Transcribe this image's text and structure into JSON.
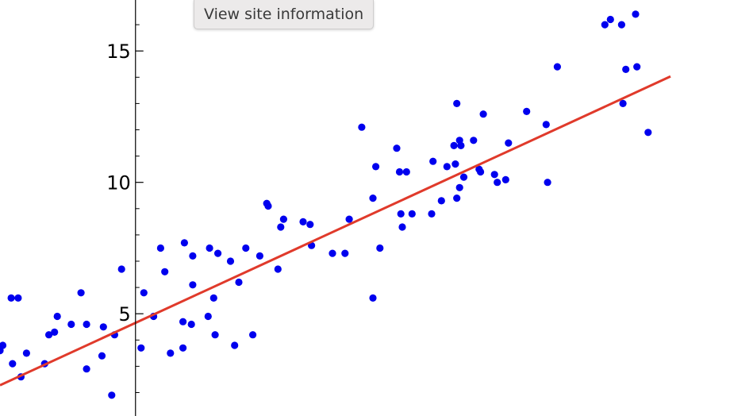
{
  "tooltip": {
    "text": "View site information"
  },
  "chart_data": {
    "type": "scatter",
    "xlim": [
      -9.7,
      38.3
    ],
    "ylim": [
      1.11,
      16.94
    ],
    "y_ticks": [
      5,
      10,
      15
    ],
    "y_tick_labels": [
      "",
      "10",
      "15"
    ],
    "colors": {
      "points": "#0000ee",
      "fit_line": "#e03a2b",
      "axis": "#000000"
    },
    "points": [
      {
        "x": -9.7,
        "y": 3.6
      },
      {
        "x": -9.5,
        "y": 3.8
      },
      {
        "x": -8.9,
        "y": 5.6
      },
      {
        "x": -8.8,
        "y": 3.1
      },
      {
        "x": -8.4,
        "y": 5.6
      },
      {
        "x": -8.2,
        "y": 2.6
      },
      {
        "x": -7.8,
        "y": 3.5
      },
      {
        "x": -6.5,
        "y": 3.1
      },
      {
        "x": -6.2,
        "y": 4.2
      },
      {
        "x": -5.8,
        "y": 4.3
      },
      {
        "x": -5.6,
        "y": 4.9
      },
      {
        "x": -4.6,
        "y": 4.6
      },
      {
        "x": -3.9,
        "y": 5.8
      },
      {
        "x": -3.5,
        "y": 4.6
      },
      {
        "x": -3.5,
        "y": 2.9
      },
      {
        "x": -2.4,
        "y": 3.4
      },
      {
        "x": -2.3,
        "y": 4.5
      },
      {
        "x": -1.7,
        "y": 1.9
      },
      {
        "x": -1.5,
        "y": 4.2
      },
      {
        "x": -1.0,
        "y": 6.7
      },
      {
        "x": 0.4,
        "y": 3.7
      },
      {
        "x": 0.6,
        "y": 5.8
      },
      {
        "x": 1.3,
        "y": 4.9
      },
      {
        "x": 1.8,
        "y": 7.5
      },
      {
        "x": 2.1,
        "y": 6.6
      },
      {
        "x": 2.5,
        "y": 3.5
      },
      {
        "x": 3.4,
        "y": 3.7
      },
      {
        "x": 3.4,
        "y": 4.7
      },
      {
        "x": 3.5,
        "y": 7.7
      },
      {
        "x": 4.0,
        "y": 4.6
      },
      {
        "x": 4.1,
        "y": 7.2
      },
      {
        "x": 4.1,
        "y": 6.1
      },
      {
        "x": 5.2,
        "y": 4.9
      },
      {
        "x": 5.3,
        "y": 7.5
      },
      {
        "x": 5.6,
        "y": 5.6
      },
      {
        "x": 5.7,
        "y": 4.2
      },
      {
        "x": 5.9,
        "y": 7.3
      },
      {
        "x": 6.8,
        "y": 7.0
      },
      {
        "x": 7.1,
        "y": 3.8
      },
      {
        "x": 7.4,
        "y": 6.2
      },
      {
        "x": 7.9,
        "y": 7.5
      },
      {
        "x": 8.4,
        "y": 4.2
      },
      {
        "x": 8.9,
        "y": 7.2
      },
      {
        "x": 9.4,
        "y": 9.2
      },
      {
        "x": 9.5,
        "y": 9.1
      },
      {
        "x": 10.2,
        "y": 6.7
      },
      {
        "x": 10.4,
        "y": 8.3
      },
      {
        "x": 10.6,
        "y": 8.6
      },
      {
        "x": 12.0,
        "y": 8.5
      },
      {
        "x": 12.5,
        "y": 8.4
      },
      {
        "x": 12.6,
        "y": 7.6
      },
      {
        "x": 14.1,
        "y": 7.3
      },
      {
        "x": 15.0,
        "y": 7.3
      },
      {
        "x": 15.3,
        "y": 8.6
      },
      {
        "x": 16.2,
        "y": 12.1
      },
      {
        "x": 17.0,
        "y": 9.4
      },
      {
        "x": 17.0,
        "y": 5.6
      },
      {
        "x": 17.2,
        "y": 10.6
      },
      {
        "x": 17.5,
        "y": 7.5
      },
      {
        "x": 18.7,
        "y": 11.3
      },
      {
        "x": 18.9,
        "y": 10.4
      },
      {
        "x": 19.0,
        "y": 8.8
      },
      {
        "x": 19.1,
        "y": 8.3
      },
      {
        "x": 19.4,
        "y": 10.4
      },
      {
        "x": 19.8,
        "y": 8.8
      },
      {
        "x": 21.2,
        "y": 8.8
      },
      {
        "x": 21.3,
        "y": 10.8
      },
      {
        "x": 21.9,
        "y": 9.3
      },
      {
        "x": 22.3,
        "y": 10.6
      },
      {
        "x": 22.8,
        "y": 11.4
      },
      {
        "x": 22.9,
        "y": 10.7
      },
      {
        "x": 23.0,
        "y": 13.0
      },
      {
        "x": 23.0,
        "y": 9.4
      },
      {
        "x": 23.2,
        "y": 11.6
      },
      {
        "x": 23.2,
        "y": 9.8
      },
      {
        "x": 23.3,
        "y": 11.4
      },
      {
        "x": 23.5,
        "y": 10.2
      },
      {
        "x": 24.2,
        "y": 11.6
      },
      {
        "x": 24.6,
        "y": 10.5
      },
      {
        "x": 24.7,
        "y": 10.4
      },
      {
        "x": 24.9,
        "y": 12.6
      },
      {
        "x": 25.7,
        "y": 10.3
      },
      {
        "x": 25.9,
        "y": 10.0
      },
      {
        "x": 26.5,
        "y": 10.1
      },
      {
        "x": 26.7,
        "y": 11.5
      },
      {
        "x": 28.0,
        "y": 12.7
      },
      {
        "x": 29.4,
        "y": 12.2
      },
      {
        "x": 29.5,
        "y": 10.0
      },
      {
        "x": 30.2,
        "y": 14.4
      },
      {
        "x": 33.6,
        "y": 16.0
      },
      {
        "x": 34.0,
        "y": 16.2
      },
      {
        "x": 34.8,
        "y": 16.0
      },
      {
        "x": 34.9,
        "y": 13.0
      },
      {
        "x": 35.1,
        "y": 14.3
      },
      {
        "x": 35.8,
        "y": 16.4
      },
      {
        "x": 35.9,
        "y": 14.4
      },
      {
        "x": 36.7,
        "y": 11.9
      }
    ],
    "fit_line": {
      "x": [
        -9.7,
        38.3
      ],
      "y": [
        2.28,
        14.03
      ]
    }
  }
}
